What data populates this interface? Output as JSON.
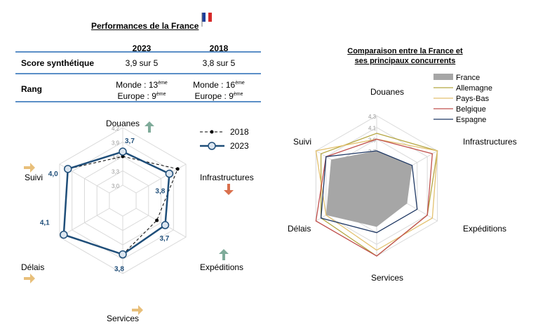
{
  "left_title": "Performances de la France",
  "table": {
    "col_headers": [
      "2023",
      "2018"
    ],
    "score_label": "Score synthétique",
    "score_values": [
      "3,9 sur 5",
      "3,8 sur 5"
    ],
    "rang_label": "Rang",
    "rang_2023": {
      "monde": "Monde : 13",
      "monde_sup": "ème",
      "europe": "Europe : 9",
      "europe_sup": "ème"
    },
    "rang_2018": {
      "monde": "Monde : 16",
      "monde_sup": "ème",
      "europe": "Europe : 9",
      "europe_sup": "ème"
    }
  },
  "right_title_l1": "Comparaison entre la France et",
  "right_title_l2": "ses principaux concurrents",
  "colors": {
    "s2023": "#1f4e79",
    "s2018": "#000000",
    "france": "#a6a6a6",
    "allemagne": "#b5a642",
    "paysbas": "#e3c16f",
    "belgique": "#c0504d",
    "espagne": "#1f3864",
    "arrow_up": "#7fab9a",
    "arrow_down": "#d9704d",
    "arrow_right": "#e8bf7a",
    "grid": "#d9d9d9"
  },
  "chart_data": [
    {
      "type": "radar",
      "axes": [
        "Douanes",
        "Infrastructures",
        "Expéditions",
        "Services",
        "Délais",
        "Suivi"
      ],
      "ticks": [
        "3,0",
        "3,3",
        "3,6",
        "3,9",
        "4,2"
      ],
      "range": [
        3.0,
        4.2
      ],
      "legend": [
        "2018",
        "2023"
      ],
      "series": [
        {
          "name": "2023",
          "values": [
            3.7,
            3.8,
            3.7,
            3.8,
            4.1,
            4.0
          ],
          "labels": [
            "3,7",
            "3,8",
            "3,7",
            "3,8",
            "4,1",
            "4,0"
          ]
        },
        {
          "name": "2018",
          "values": [
            3.6,
            4.0,
            3.5,
            3.8,
            4.1,
            4.0
          ]
        }
      ],
      "trends": {
        "Douanes": "up",
        "Infrastructures": "down",
        "Expéditions": "up",
        "Services": "right",
        "Délais": "right",
        "Suivi": "right"
      }
    },
    {
      "type": "radar",
      "axes": [
        "Douanes",
        "Infrastructures",
        "Expéditions",
        "Services",
        "Délais",
        "Suivi"
      ],
      "ticks": [
        "3,5",
        "3,7",
        "3,9",
        "4,1",
        "4,3"
      ],
      "range": [
        3.1,
        4.3
      ],
      "series": [
        {
          "name": "France",
          "values": [
            3.7,
            3.8,
            3.7,
            3.8,
            4.1,
            4.0
          ]
        },
        {
          "name": "Allemagne",
          "values": [
            4.0,
            4.3,
            4.1,
            4.3,
            4.2,
            4.2
          ]
        },
        {
          "name": "Pays-Bas",
          "values": [
            3.9,
            4.3,
            4.2,
            4.2,
            4.1,
            4.3
          ]
        },
        {
          "name": "Belgique",
          "values": [
            3.9,
            4.2,
            4.1,
            4.3,
            4.3,
            4.1
          ]
        },
        {
          "name": "Espagne",
          "values": [
            3.7,
            3.8,
            3.9,
            3.9,
            4.2,
            4.1
          ]
        }
      ]
    }
  ]
}
